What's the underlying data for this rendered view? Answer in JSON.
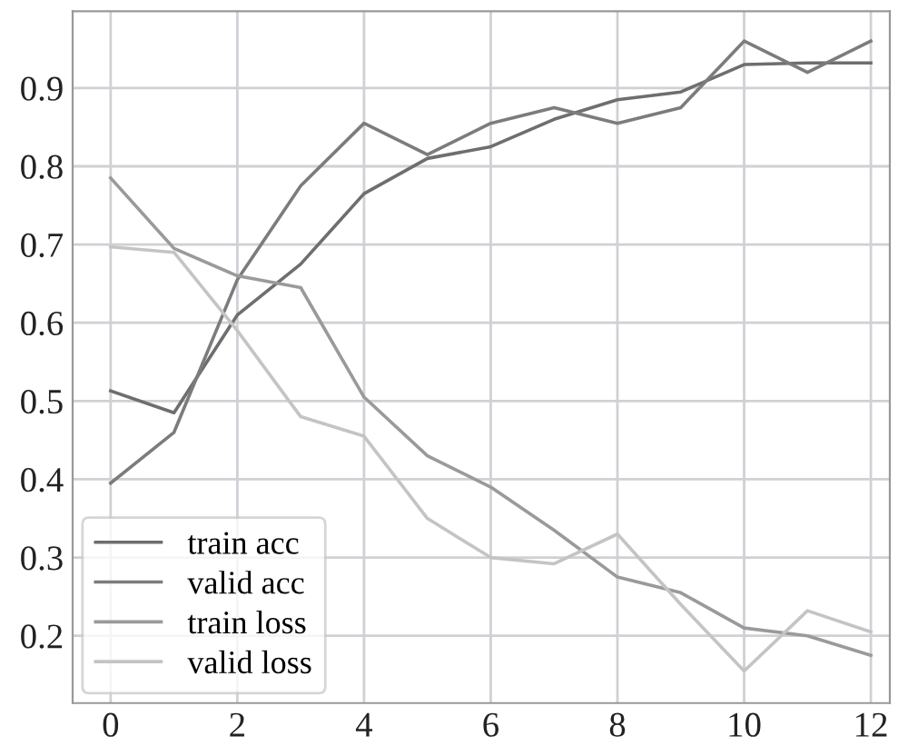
{
  "chart_data": {
    "type": "line",
    "x": [
      0,
      1,
      2,
      3,
      4,
      5,
      6,
      7,
      8,
      9,
      10,
      11,
      12
    ],
    "series": [
      {
        "name": "train acc",
        "color": "#6e6e6e",
        "values": [
          0.513,
          0.485,
          0.61,
          0.675,
          0.765,
          0.81,
          0.825,
          0.86,
          0.885,
          0.895,
          0.93,
          0.932,
          0.932
        ]
      },
      {
        "name": "valid acc",
        "color": "#7c7c7c",
        "values": [
          0.395,
          0.46,
          0.655,
          0.775,
          0.855,
          0.815,
          0.855,
          0.875,
          0.855,
          0.875,
          0.96,
          0.92,
          0.96
        ]
      },
      {
        "name": "train loss",
        "color": "#9a9a9a",
        "values": [
          0.785,
          0.695,
          0.66,
          0.645,
          0.505,
          0.43,
          0.39,
          0.335,
          0.275,
          0.255,
          0.21,
          0.2,
          0.175
        ]
      },
      {
        "name": "valid loss",
        "color": "#c4c4c4",
        "values": [
          0.697,
          0.69,
          0.59,
          0.48,
          0.455,
          0.35,
          0.3,
          0.292,
          0.33,
          0.24,
          0.155,
          0.232,
          0.205
        ]
      }
    ],
    "xlim": [
      -0.6,
      12.3
    ],
    "ylim": [
      0.114,
      0.998
    ],
    "xticks": [
      0,
      2,
      4,
      6,
      8,
      10,
      12
    ],
    "yticks": [
      0.2,
      0.3,
      0.4,
      0.5,
      0.6,
      0.7,
      0.8,
      0.9
    ],
    "grid": true,
    "legend": "bottom left"
  }
}
